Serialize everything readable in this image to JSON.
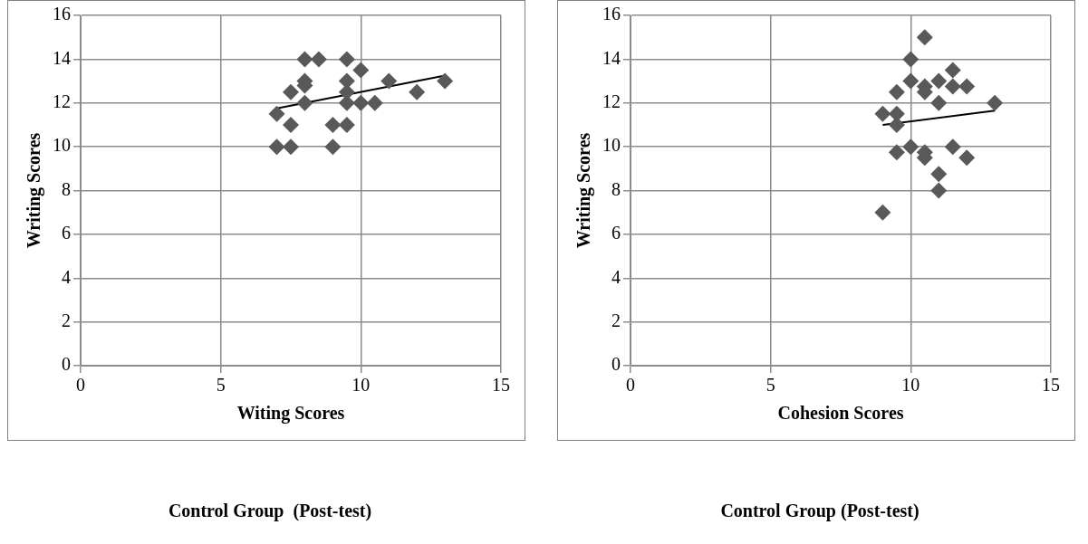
{
  "chart_data": [
    {
      "type": "scatter",
      "title": "Control Group  (Post-test)",
      "xlabel": "Witing Scores",
      "ylabel": "Writing Scores",
      "xlim": [
        0,
        15
      ],
      "xticks": [
        0,
        5,
        10,
        15
      ],
      "ylim": [
        0,
        16
      ],
      "yticks": [
        0,
        2,
        4,
        6,
        8,
        10,
        12,
        14,
        16
      ],
      "grid": true,
      "legend": false,
      "series": [
        {
          "marker": "diamond",
          "color": "#595959",
          "x": [
            7,
            7,
            7.5,
            7.5,
            7.5,
            8,
            8,
            8,
            8,
            8.5,
            9,
            9,
            9.5,
            9.5,
            9.5,
            9.5,
            9.5,
            10,
            10,
            10.5,
            11,
            12,
            13
          ],
          "values": [
            11.5,
            10,
            10,
            11,
            12.5,
            12.8,
            13,
            14,
            12,
            14,
            11,
            10,
            11,
            12,
            13,
            14,
            12.5,
            12,
            13.5,
            12,
            13,
            12.5,
            13
          ]
        },
        {
          "type": "line",
          "marker": "none",
          "color": "#000000",
          "x": [
            7,
            13
          ],
          "values": [
            11.75,
            13.25
          ]
        }
      ]
    },
    {
      "type": "scatter",
      "title": "Control Group (Post-test)",
      "xlabel": "Cohesion Scores",
      "ylabel": "Writing Scores",
      "xlim": [
        0,
        15
      ],
      "xticks": [
        0,
        5,
        10,
        15
      ],
      "ylim": [
        0,
        16
      ],
      "yticks": [
        0,
        2,
        4,
        6,
        8,
        10,
        12,
        14,
        16
      ],
      "grid": true,
      "legend": false,
      "series": [
        {
          "marker": "diamond",
          "color": "#595959",
          "x": [
            9,
            9,
            9.5,
            9.5,
            9.5,
            9.5,
            10,
            10,
            10,
            10.5,
            10.5,
            10.5,
            10.5,
            10.5,
            11,
            11,
            11,
            11,
            11.5,
            11.5,
            11.5,
            12,
            12,
            13
          ],
          "values": [
            11.5,
            7,
            12.5,
            11.5,
            11,
            9.75,
            14,
            13,
            10,
            15,
            12.5,
            12.75,
            9.75,
            9.5,
            13,
            12,
            8.75,
            8,
            13.5,
            12.75,
            10,
            12.75,
            9.5,
            12
          ]
        },
        {
          "type": "line",
          "marker": "none",
          "color": "#000000",
          "x": [
            9,
            13
          ],
          "values": [
            11,
            11.65
          ]
        }
      ]
    }
  ]
}
